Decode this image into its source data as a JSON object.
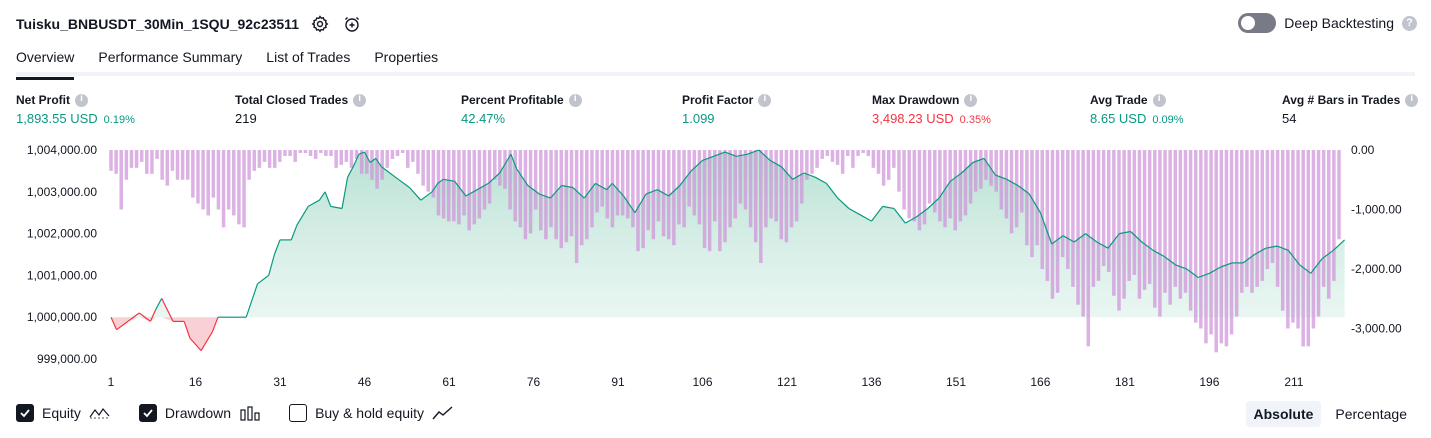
{
  "header": {
    "title": "Tuisku_BNBUSDT_30Min_1SQU_92c23511",
    "deep_backtesting_label": "Deep Backtesting"
  },
  "tabs": [
    {
      "label": "Overview",
      "active": true
    },
    {
      "label": "Performance Summary"
    },
    {
      "label": "List of Trades"
    },
    {
      "label": "Properties"
    }
  ],
  "metrics": [
    {
      "label": "Net Profit",
      "value": "1,893.55 USD",
      "pct": "0.19%",
      "tone": "pos"
    },
    {
      "label": "Total Closed Trades",
      "value": "219",
      "pct": "",
      "tone": "neu"
    },
    {
      "label": "Percent Profitable",
      "value": "42.47%",
      "pct": "",
      "tone": "pos"
    },
    {
      "label": "Profit Factor",
      "value": "1.099",
      "pct": "",
      "tone": "pos"
    },
    {
      "label": "Max Drawdown",
      "value": "3,498.23 USD",
      "pct": "0.35%",
      "tone": "neg"
    },
    {
      "label": "Avg Trade",
      "value": "8.65 USD",
      "pct": "0.09%",
      "tone": "pos"
    },
    {
      "label": "Avg # Bars in Trades",
      "value": "54",
      "pct": "",
      "tone": "neu"
    }
  ],
  "legend": {
    "equity": "Equity",
    "drawdown": "Drawdown",
    "buy_hold": "Buy & hold equity"
  },
  "modes": {
    "absolute": "Absolute",
    "percentage": "Percentage"
  },
  "colors": {
    "positive": "#089981",
    "negative": "#f23645",
    "drawdown_bar": "#ce93d8",
    "equity_fill": "#d4ede6"
  },
  "chart_data": {
    "type": "line",
    "x_ticks": [
      "1",
      "16",
      "31",
      "46",
      "61",
      "76",
      "91",
      "106",
      "121",
      "136",
      "151",
      "166",
      "181",
      "196",
      "211"
    ],
    "left_axis_ticks": [
      "1,004,000.00",
      "1,003,000.00",
      "1,002,000.00",
      "1,001,000.00",
      "1,000,000.00",
      "999,000.00"
    ],
    "right_axis_ticks": [
      "0.00",
      "-1,000.00",
      "-2,000.00",
      "-3,000.00"
    ],
    "ylim_left": [
      998700,
      1004150
    ],
    "ylim_right": [
      -3500,
      0
    ],
    "baseline": 1000000,
    "series": [
      {
        "name": "Equity",
        "x": [
          1,
          2,
          4,
          6,
          8,
          9,
          10,
          12,
          14,
          15,
          17,
          19,
          20,
          22,
          23,
          25,
          27,
          29,
          30,
          31,
          33,
          34,
          36,
          38,
          39,
          40,
          42,
          43,
          44,
          45,
          46,
          47,
          48,
          49,
          50,
          52,
          54,
          56,
          58,
          59,
          60,
          62,
          64,
          66,
          68,
          70,
          72,
          73,
          75,
          77,
          79,
          81,
          83,
          85,
          87,
          89,
          90,
          92,
          94,
          96,
          98,
          100,
          102,
          104,
          106,
          108,
          110,
          112,
          114,
          116,
          118,
          120,
          122,
          124,
          126,
          128,
          130,
          132,
          134,
          136,
          138,
          140,
          142,
          144,
          146,
          148,
          150,
          152,
          154,
          156,
          158,
          160,
          162,
          164,
          166,
          168,
          170,
          172,
          174,
          176,
          178,
          180,
          182,
          184,
          186,
          188,
          190,
          192,
          194,
          196,
          198,
          200,
          202,
          204,
          206,
          208,
          210,
          212,
          214,
          216,
          218,
          220
        ],
        "values": [
          1000000,
          999700,
          999900,
          1000100,
          999900,
          1000200,
          1000450,
          999900,
          999900,
          999500,
          999200,
          999650,
          1000000,
          1000000,
          1000000,
          1000000,
          1000800,
          1001000,
          1001500,
          1001850,
          1001850,
          1002200,
          1002650,
          1002800,
          1003000,
          1002650,
          1002600,
          1003350,
          1003600,
          1003900,
          1003950,
          1003700,
          1003800,
          1003600,
          1003500,
          1003300,
          1003100,
          1002800,
          1003000,
          1003200,
          1003300,
          1003250,
          1002900,
          1003050,
          1003200,
          1003450,
          1003900,
          1003550,
          1003150,
          1002950,
          1002850,
          1003150,
          1003100,
          1002850,
          1003200,
          1003050,
          1003200,
          1002900,
          1002500,
          1002950,
          1003050,
          1002900,
          1003150,
          1003500,
          1003750,
          1003850,
          1003950,
          1003850,
          1003900,
          1004000,
          1003750,
          1003600,
          1003300,
          1003450,
          1003350,
          1003200,
          1002850,
          1002600,
          1002450,
          1002300,
          1002650,
          1002600,
          1002250,
          1002400,
          1002600,
          1002850,
          1003250,
          1003450,
          1003700,
          1003800,
          1003400,
          1003300,
          1003150,
          1002950,
          1002500,
          1001750,
          1001950,
          1001800,
          1002000,
          1001800,
          1001650,
          1002000,
          1002050,
          1001800,
          1001600,
          1001450,
          1001250,
          1001150,
          1000950,
          1001050,
          1001200,
          1001300,
          1001300,
          1001500,
          1001650,
          1001700,
          1001600,
          1001250,
          1001050,
          1001400,
          1001600,
          1001850
        ]
      },
      {
        "name": "Drawdown",
        "values": [
          -350,
          -400,
          -1000,
          -500,
          -300,
          -300,
          -200,
          -400,
          -400,
          -150,
          -500,
          -600,
          -350,
          -500,
          -500,
          -500,
          -800,
          -900,
          -1000,
          -1100,
          -800,
          -1000,
          -1300,
          -1000,
          -1100,
          -1250,
          -1300,
          -500,
          -350,
          -300,
          -200,
          -300,
          -300,
          -200,
          -100,
          -100,
          -200,
          -50,
          -50,
          -100,
          -150,
          -50,
          -100,
          -100,
          -300,
          -250,
          -200,
          -300,
          -150,
          -400,
          -400,
          -500,
          -650,
          -500,
          -300,
          -150,
          -100,
          -50,
          -300,
          -200,
          -400,
          -600,
          -700,
          -800,
          -1100,
          -1150,
          -1200,
          -1200,
          -1250,
          -1100,
          -1350,
          -1250,
          -1150,
          -1000,
          -900,
          -500,
          -600,
          -650,
          -1000,
          -1200,
          -1300,
          -1500,
          -1400,
          -1000,
          -1350,
          -1500,
          -1300,
          -1500,
          -1650,
          -1550,
          -1450,
          -1900,
          -1600,
          -1500,
          -1300,
          -1050,
          -950,
          -1150,
          -1300,
          -1100,
          -1100,
          -1150,
          -1300,
          -1700,
          -1650,
          -1350,
          -1500,
          -1200,
          -1450,
          -1500,
          -1600,
          -1250,
          -1300,
          -950,
          -1100,
          -1250,
          -1650,
          -1700,
          -1200,
          -1700,
          -1550,
          -1300,
          -1150,
          -900,
          -1000,
          -1300,
          -1550,
          -1900,
          -1300,
          -1150,
          -1200,
          -1500,
          -1550,
          -1300,
          -1200,
          -900,
          -500,
          -400,
          -300,
          -150,
          -100,
          -200,
          -250,
          -400,
          -100,
          -300,
          -100,
          -50,
          -100,
          -300,
          -400,
          -600,
          -500,
          -300,
          -700,
          -1000,
          -1150,
          -1200,
          -1350,
          -1250,
          -900,
          -1050,
          -1200,
          -1300,
          -1150,
          -1350,
          -1200,
          -1100,
          -900,
          -700,
          -650,
          -500,
          -600,
          -700,
          -1000,
          -1150,
          -1400,
          -1300,
          -1050,
          -1600,
          -1800,
          -1600,
          -2000,
          -2200,
          -2500,
          -2400,
          -1800,
          -2000,
          -2300,
          -2600,
          -2800,
          -3300,
          -2300,
          -2200,
          -1950,
          -2050,
          -2450,
          -2700,
          -2500,
          -2200,
          -2100,
          -2500,
          -2350,
          -2250,
          -2650,
          -2800,
          -2400,
          -2600,
          -2300,
          -2500,
          -2400,
          -2700,
          -2900,
          -3000,
          -3250,
          -3100,
          -3400,
          -3250,
          -3300,
          -3100,
          -2800,
          -2400,
          -2300,
          -2400,
          -2300,
          -2200,
          -2000,
          -1900,
          -2300,
          -2700,
          -3000,
          -2900,
          -3000,
          -3300,
          -3300,
          -3000,
          -2800,
          -2300,
          -2500,
          -2200,
          -1500
        ]
      }
    ]
  }
}
